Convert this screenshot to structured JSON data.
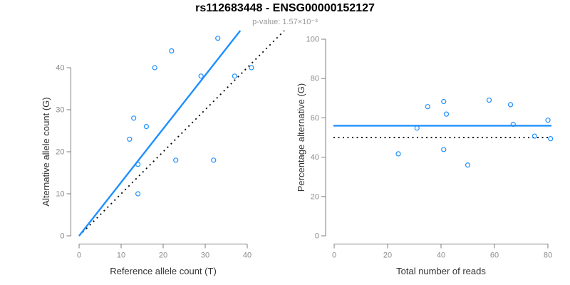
{
  "header": {
    "title": "rs112683448 - ENSG00000152127",
    "subtitle": "p-value: 1.57×10⁻³"
  },
  "colors": {
    "point_blue": "#1E90FF",
    "fit_line_blue": "#1E90FF",
    "reference_line_black": "#000000",
    "axis_line": "#7F7F7F",
    "tick_label": "#8C8C8C",
    "axis_title": "#333333",
    "title": "#000000",
    "subtitle": "#9A9A9A"
  },
  "chart_data": [
    {
      "name": "allele-count-scatter",
      "type": "scatter",
      "xlabel": "Reference allele count (T)",
      "ylabel": "Alternative allele count (G)",
      "xticks": [
        0,
        10,
        20,
        30,
        40
      ],
      "yticks": [
        0,
        10,
        20,
        30,
        40
      ],
      "xlim": [
        0,
        47
      ],
      "ylim": [
        0,
        47
      ],
      "points": [
        [
          33,
          47
        ],
        [
          22,
          44
        ],
        [
          18,
          40
        ],
        [
          29,
          38
        ],
        [
          37,
          38
        ],
        [
          41,
          40
        ],
        [
          13,
          28
        ],
        [
          16,
          26
        ],
        [
          12,
          23
        ],
        [
          14,
          17
        ],
        [
          23,
          18
        ],
        [
          32,
          18
        ],
        [
          14,
          10
        ]
      ],
      "fit_line": {
        "kind": "through-origin",
        "slope": 1.273,
        "style": "solid",
        "color_key": "fit_line_blue"
      },
      "reference_line": {
        "kind": "identity",
        "slope": 1,
        "style": "dotted",
        "color_key": "reference_line_black"
      },
      "legend": "none",
      "grid": false
    },
    {
      "name": "percentage-alternative-scatter",
      "type": "scatter",
      "xlabel": "Total number of reads",
      "ylabel": "Percentage alternative (G)",
      "xticks": [
        0,
        20,
        40,
        60,
        80
      ],
      "yticks": [
        0,
        20,
        40,
        60,
        80,
        100
      ],
      "xlim": [
        0,
        81
      ],
      "ylim": [
        0,
        100
      ],
      "points": [
        [
          24,
          41.7
        ],
        [
          31,
          54.8
        ],
        [
          35,
          65.7
        ],
        [
          41,
          68.3
        ],
        [
          41,
          43.9
        ],
        [
          42,
          61.9
        ],
        [
          50,
          36.0
        ],
        [
          58,
          69.0
        ],
        [
          66,
          66.7
        ],
        [
          67,
          56.7
        ],
        [
          75,
          50.7
        ],
        [
          80,
          58.8
        ],
        [
          81,
          49.4
        ]
      ],
      "fit_line": {
        "kind": "hline",
        "y": 56.0,
        "style": "solid",
        "color_key": "fit_line_blue"
      },
      "reference_line": {
        "kind": "hline",
        "y": 50.0,
        "style": "dotted",
        "color_key": "reference_line_black"
      },
      "legend": "none",
      "grid": false
    }
  ]
}
